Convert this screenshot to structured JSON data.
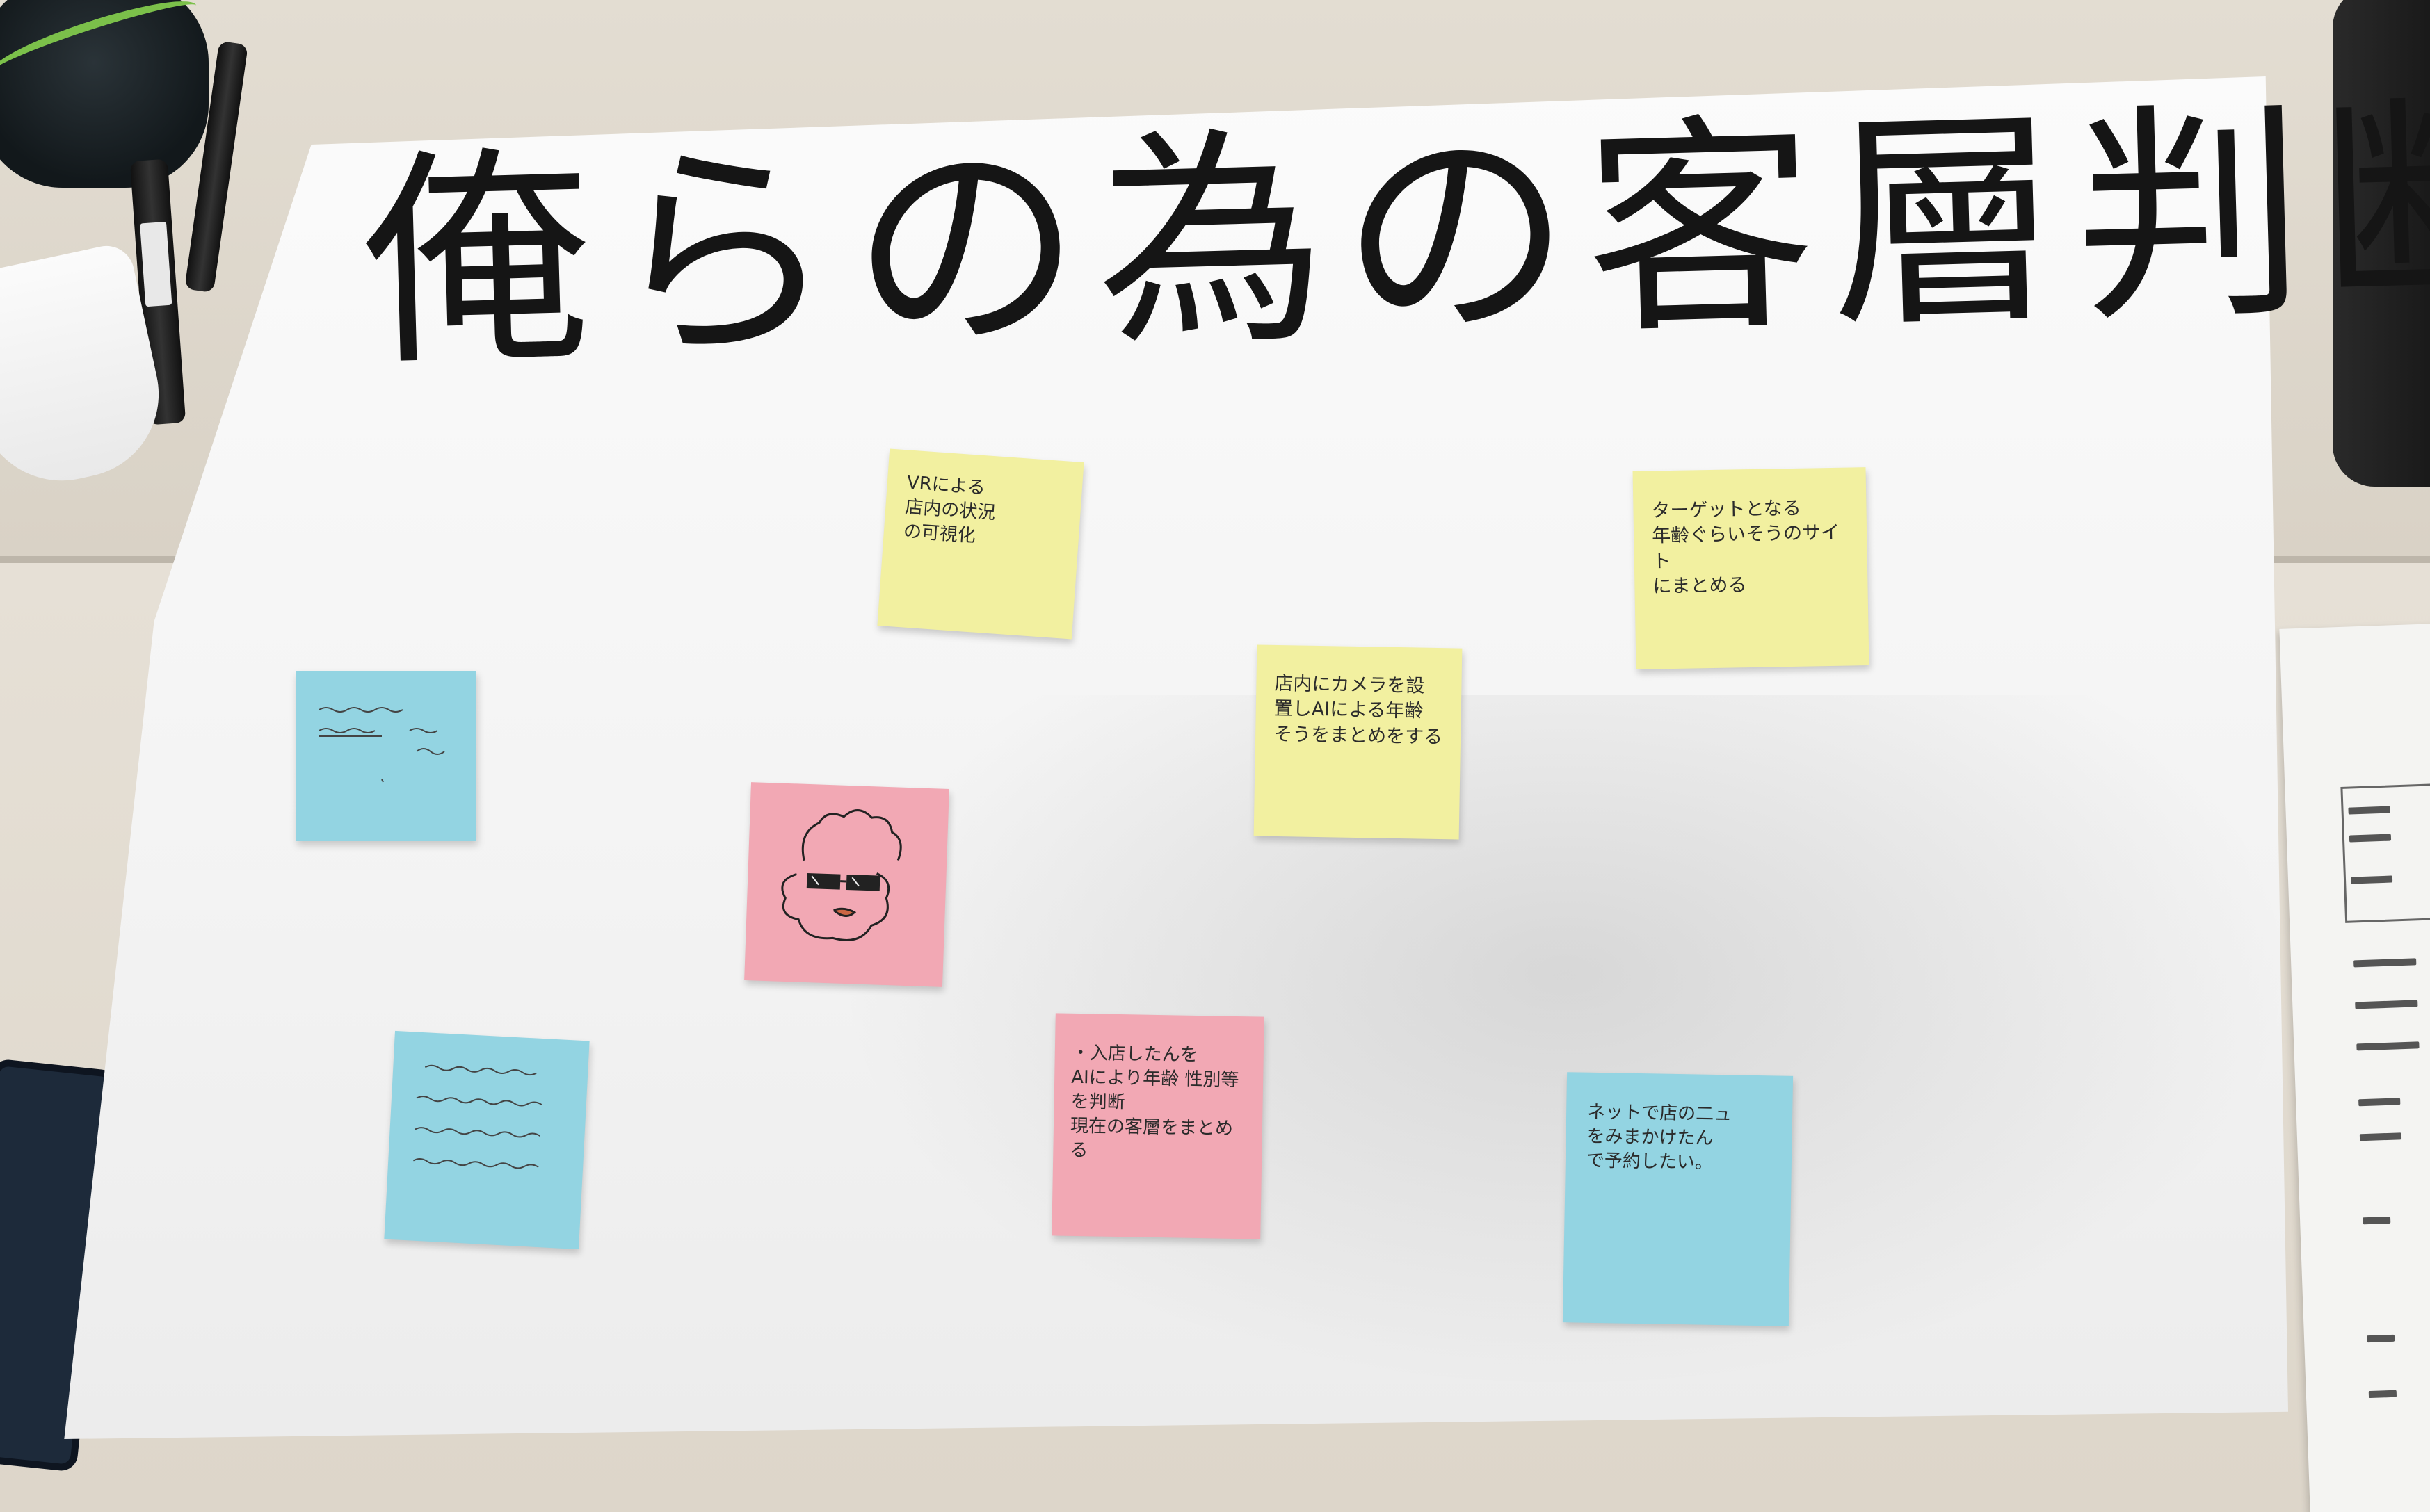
{
  "poster": {
    "title": "俺らの為の客層判断"
  },
  "sticky_notes": [
    {
      "id": "vr",
      "color": "yellow",
      "text": "VRによる\n店内の状況\nの可視化"
    },
    {
      "id": "target",
      "color": "yellow",
      "text": "ターゲットとなる\n年齢ぐらいそうのサイト\nにまとめる"
    },
    {
      "id": "camera",
      "color": "yellow",
      "text": "店内にカメラを設\n置しAIによる年齢\nそうをまとめをする"
    },
    {
      "id": "blue1",
      "color": "blue",
      "text": ""
    },
    {
      "id": "face",
      "color": "pink",
      "text": ""
    },
    {
      "id": "blue2",
      "color": "blue",
      "text": ""
    },
    {
      "id": "pink2",
      "color": "pink",
      "text": "・入店したんを\nAIにより年齢 性別等\nを判断\n現在の客層をまとめる"
    },
    {
      "id": "blue3",
      "color": "blue",
      "text": "ネットで店の二ュ\nをみまかけたん\nで予約したい。"
    }
  ],
  "colors": {
    "poster": "#f7f7f7",
    "yellow_note": "#f2f0a0",
    "blue_note": "#93d4e2",
    "pink_note": "#f2a8b4",
    "ink": "#151515"
  }
}
